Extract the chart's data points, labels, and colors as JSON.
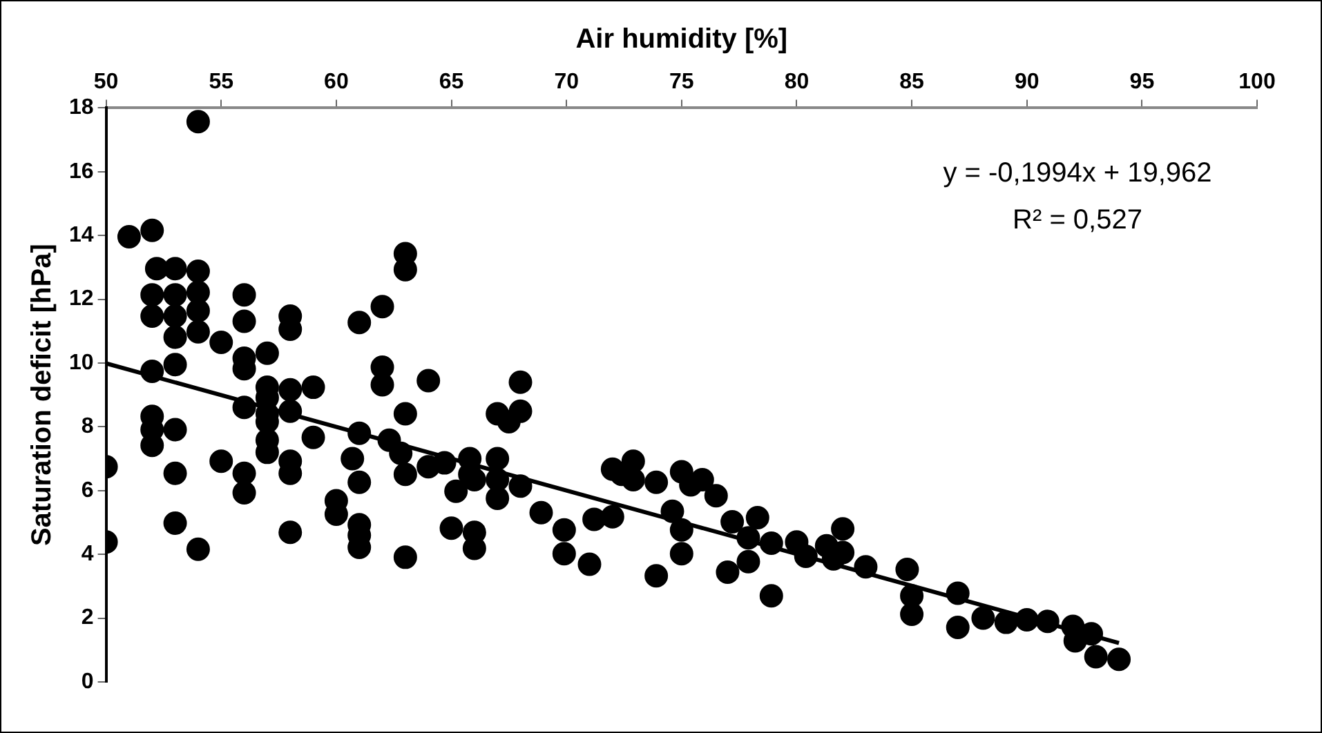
{
  "chart_data": {
    "type": "scatter",
    "xlabel": "Air humidity [%]",
    "ylabel": "Saturation deficit [hPa]",
    "xlim": [
      50,
      100
    ],
    "xticks": [
      50,
      55,
      60,
      65,
      70,
      75,
      80,
      85,
      90,
      95,
      100
    ],
    "ylim": [
      0,
      18
    ],
    "yticks": [
      0,
      2,
      4,
      6,
      8,
      10,
      12,
      14,
      16,
      18
    ],
    "grid": false,
    "legend": false,
    "marker": "circle",
    "annotations": [
      "y = -0,1994x + 19,962",
      "R² = 0,527"
    ],
    "series": [
      {
        "color": "#000000",
        "x": [
          50,
          50,
          51,
          52,
          52.2,
          52,
          52,
          52,
          52,
          52,
          52,
          53,
          53,
          53,
          53,
          53,
          53,
          53,
          53,
          54,
          54,
          54,
          54,
          54,
          54,
          55,
          55,
          56,
          56,
          56,
          56,
          56,
          56,
          56,
          57,
          57,
          57,
          57,
          57,
          57,
          57,
          58,
          58,
          58,
          58,
          58,
          58,
          58,
          59,
          59,
          60,
          60,
          61,
          61,
          60.7,
          61,
          61,
          61,
          61,
          62,
          62,
          62,
          62.3,
          62.8,
          63,
          63,
          63,
          63,
          63,
          64,
          64,
          64.7,
          65.2,
          65,
          65.8,
          65.8,
          66,
          66,
          66,
          67,
          67,
          67,
          67,
          67.5,
          68,
          68,
          68,
          68.9,
          69.9,
          69.9,
          71,
          71.2,
          72,
          72,
          72.4,
          72.9,
          72.9,
          73.9,
          73.9,
          74.6,
          75,
          75,
          75,
          75.4,
          75.9,
          76.5,
          77,
          77.2,
          77.9,
          77.9,
          78.3,
          78.9,
          78.9,
          80,
          80.4,
          81.3,
          81.6,
          82,
          82,
          83,
          84.8,
          85,
          85,
          87,
          87,
          88.1,
          89.1,
          90,
          90.9,
          92,
          92.1,
          92.8,
          93,
          94
        ],
        "values": [
          6.75,
          4.39,
          13.96,
          14.16,
          12.96,
          12.14,
          11.47,
          9.74,
          8.33,
          7.91,
          7.42,
          12.96,
          12.14,
          11.47,
          10.81,
          9.95,
          7.91,
          6.54,
          4.98,
          17.57,
          12.88,
          12.22,
          11.64,
          10.98,
          4.16,
          10.65,
          6.92,
          12.14,
          11.31,
          10.15,
          9.82,
          8.61,
          6.54,
          5.93,
          10.31,
          9.24,
          8.91,
          8.41,
          8.16,
          7.58,
          7.2,
          11.47,
          11.06,
          9.16,
          8.49,
          6.92,
          6.54,
          4.69,
          9.24,
          7.67,
          5.68,
          5.26,
          11.27,
          7.8,
          7,
          6.26,
          4.93,
          4.6,
          4.22,
          11.77,
          9.87,
          9.32,
          7.58,
          7.17,
          13.43,
          12.93,
          8.41,
          6.51,
          3.91,
          9.45,
          6.75,
          6.87,
          5.98,
          4.82,
          7,
          6.51,
          6.34,
          4.69,
          4.19,
          7,
          6.34,
          5.76,
          8.41,
          8.16,
          8.49,
          9.4,
          6.14,
          5.31,
          4.77,
          4.02,
          3.69,
          5.1,
          5.18,
          6.67,
          6.51,
          6.92,
          6.34,
          6.26,
          3.33,
          5.35,
          6.59,
          4.77,
          4.02,
          6.18,
          6.34,
          5.84,
          3.44,
          5.02,
          4.52,
          3.77,
          5.15,
          4.35,
          2.7,
          4.39,
          3.94,
          4.27,
          3.86,
          4.8,
          4.06,
          3.61,
          3.53,
          2.7,
          2.12,
          2.78,
          1.71,
          2,
          1.87,
          1.95,
          1.9,
          1.74,
          1.29,
          1.51,
          0.79,
          0.71
        ]
      },
      {
        "type": "line",
        "color": "#000000",
        "x": [
          50,
          94
        ],
        "values": [
          9.99,
          1.22
        ],
        "marker": "none",
        "line_style": "solid"
      }
    ]
  }
}
